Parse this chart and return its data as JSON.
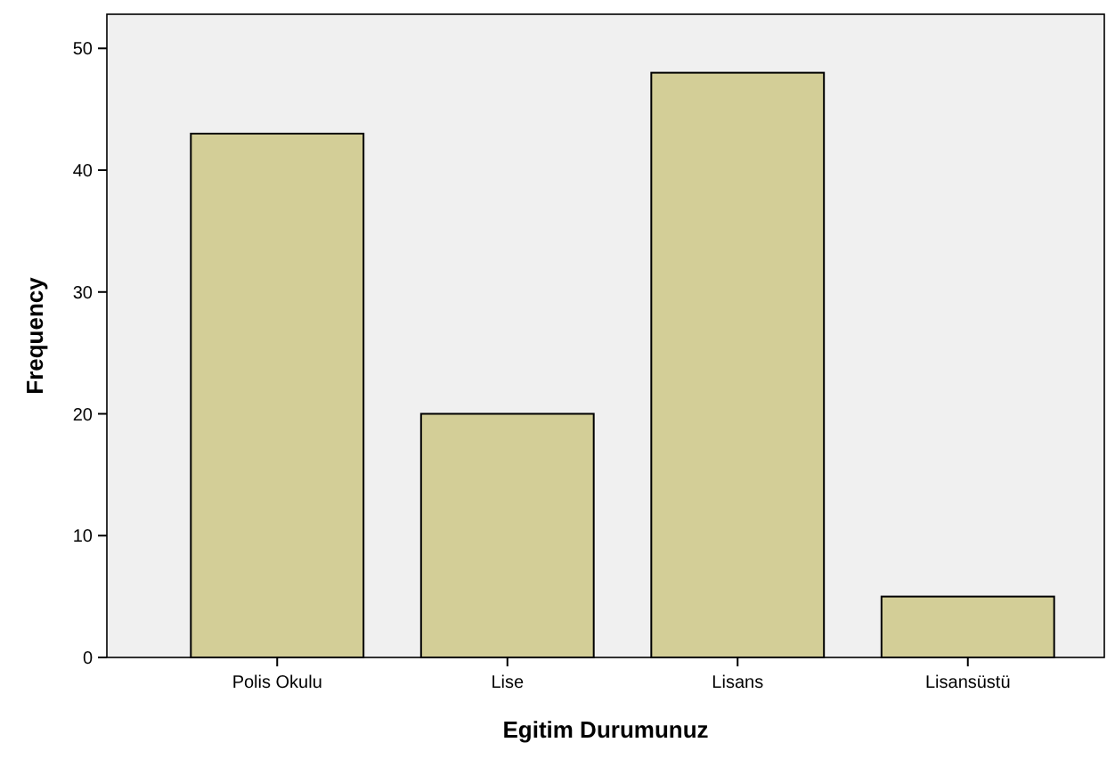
{
  "chart_data": {
    "type": "bar",
    "xlabel": "Egitim Durumunuz",
    "ylabel": "Frequency",
    "categories": [
      "Polis Okulu",
      "Lise",
      "Lisans",
      "Lisansüstü"
    ],
    "values": [
      43,
      20,
      48,
      5
    ],
    "color": "#d3ce97",
    "ylim": [
      0,
      52.8
    ],
    "yticks": [
      0,
      10,
      20,
      30,
      40,
      50
    ],
    "grid": false
  }
}
